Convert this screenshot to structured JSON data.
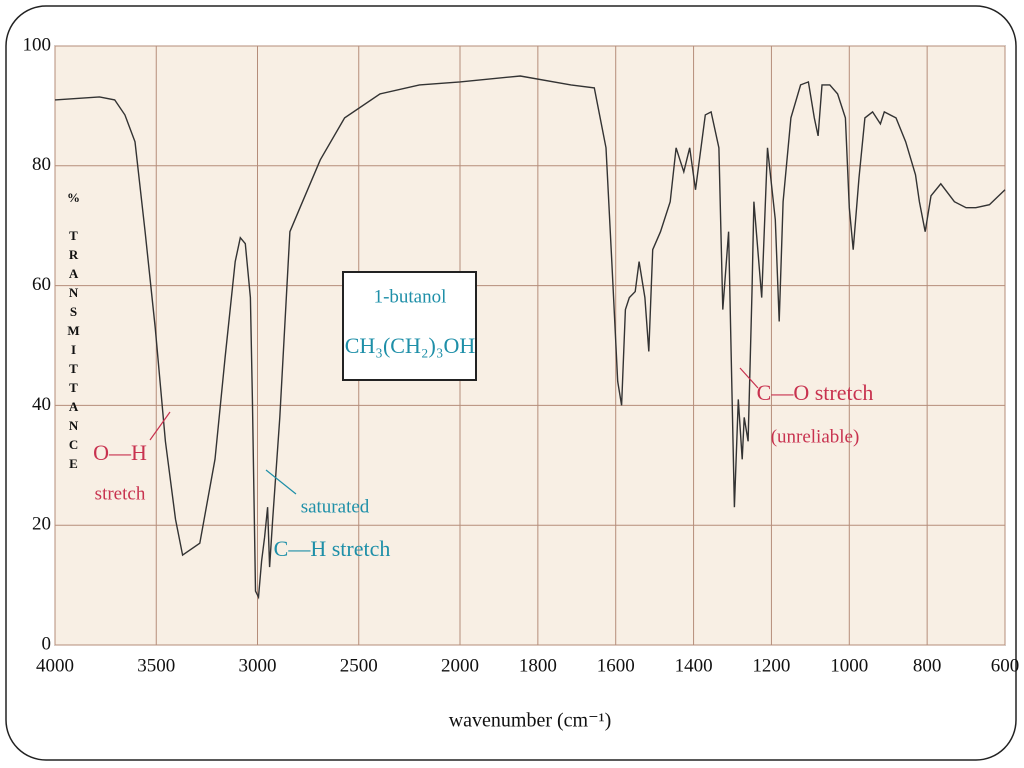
{
  "chart_data": {
    "type": "line",
    "title": "1-butanol",
    "subtitle": "CH₃(CH₂)₃OH",
    "x_label": "wavenumber (cm⁻¹)",
    "y_label": "% TRANSMITTANCE",
    "annotations": [
      "O—H",
      "stretch",
      "saturated",
      "C—H stretch",
      "C—O stretch",
      "(unreliable)"
    ],
    "color": "#333333",
    "grid": true,
    "xlim": [
      4000,
      600
    ],
    "xticks": [
      4000,
      3500,
      3000,
      2500,
      2000,
      1800,
      1600,
      1400,
      1200,
      1000,
      800,
      600
    ],
    "ylim": [
      0,
      100
    ],
    "yticks": [
      0,
      20,
      40,
      60,
      80,
      100
    ],
    "x": [
      4000,
      3780,
      3705,
      3655,
      3605,
      3555,
      3505,
      3455,
      3405,
      3370,
      3285,
      3210,
      3160,
      3110,
      3085,
      3060,
      3035,
      3025,
      3010,
      2995,
      2980,
      2965,
      2950,
      2940,
      2925,
      2890,
      2840,
      2790,
      2690,
      2570,
      2395,
      2200,
      2000,
      1845,
      1715,
      1655,
      1625,
      1610,
      1595,
      1585,
      1575,
      1565,
      1550,
      1540,
      1525,
      1515,
      1505,
      1485,
      1460,
      1445,
      1435,
      1425,
      1410,
      1395,
      1370,
      1355,
      1335,
      1325,
      1310,
      1305,
      1295,
      1285,
      1275,
      1270,
      1260,
      1250,
      1245,
      1235,
      1225,
      1210,
      1190,
      1180,
      1170,
      1150,
      1125,
      1105,
      1090,
      1080,
      1070,
      1050,
      1030,
      1010,
      1000,
      990,
      975,
      960,
      940,
      920,
      910,
      880,
      855,
      830,
      820,
      805,
      790,
      765,
      730,
      700,
      675,
      640,
      600
    ],
    "values": [
      91,
      91.5,
      91,
      88.5,
      84,
      69,
      53,
      34,
      21,
      15,
      17,
      31,
      48,
      64,
      68,
      67,
      58,
      41,
      9,
      8,
      14,
      18,
      23,
      13,
      21,
      38,
      69,
      73,
      81,
      88,
      92,
      93.5,
      94,
      95,
      93.5,
      93,
      83,
      64,
      44,
      40,
      56,
      58,
      59,
      64,
      58,
      49,
      66,
      69,
      74,
      83,
      81,
      79,
      83,
      76,
      88.5,
      89,
      83,
      56,
      69,
      53,
      23,
      41,
      31,
      38,
      34,
      59,
      74,
      66,
      58,
      83,
      71,
      54,
      74,
      88,
      93.5,
      94,
      88,
      85,
      93.5,
      93.5,
      92,
      88,
      73,
      66,
      78,
      88,
      89,
      87,
      89,
      88,
      84,
      78.5,
      74,
      69,
      75,
      77,
      74,
      73,
      73,
      73.5,
      76
    ]
  }
}
